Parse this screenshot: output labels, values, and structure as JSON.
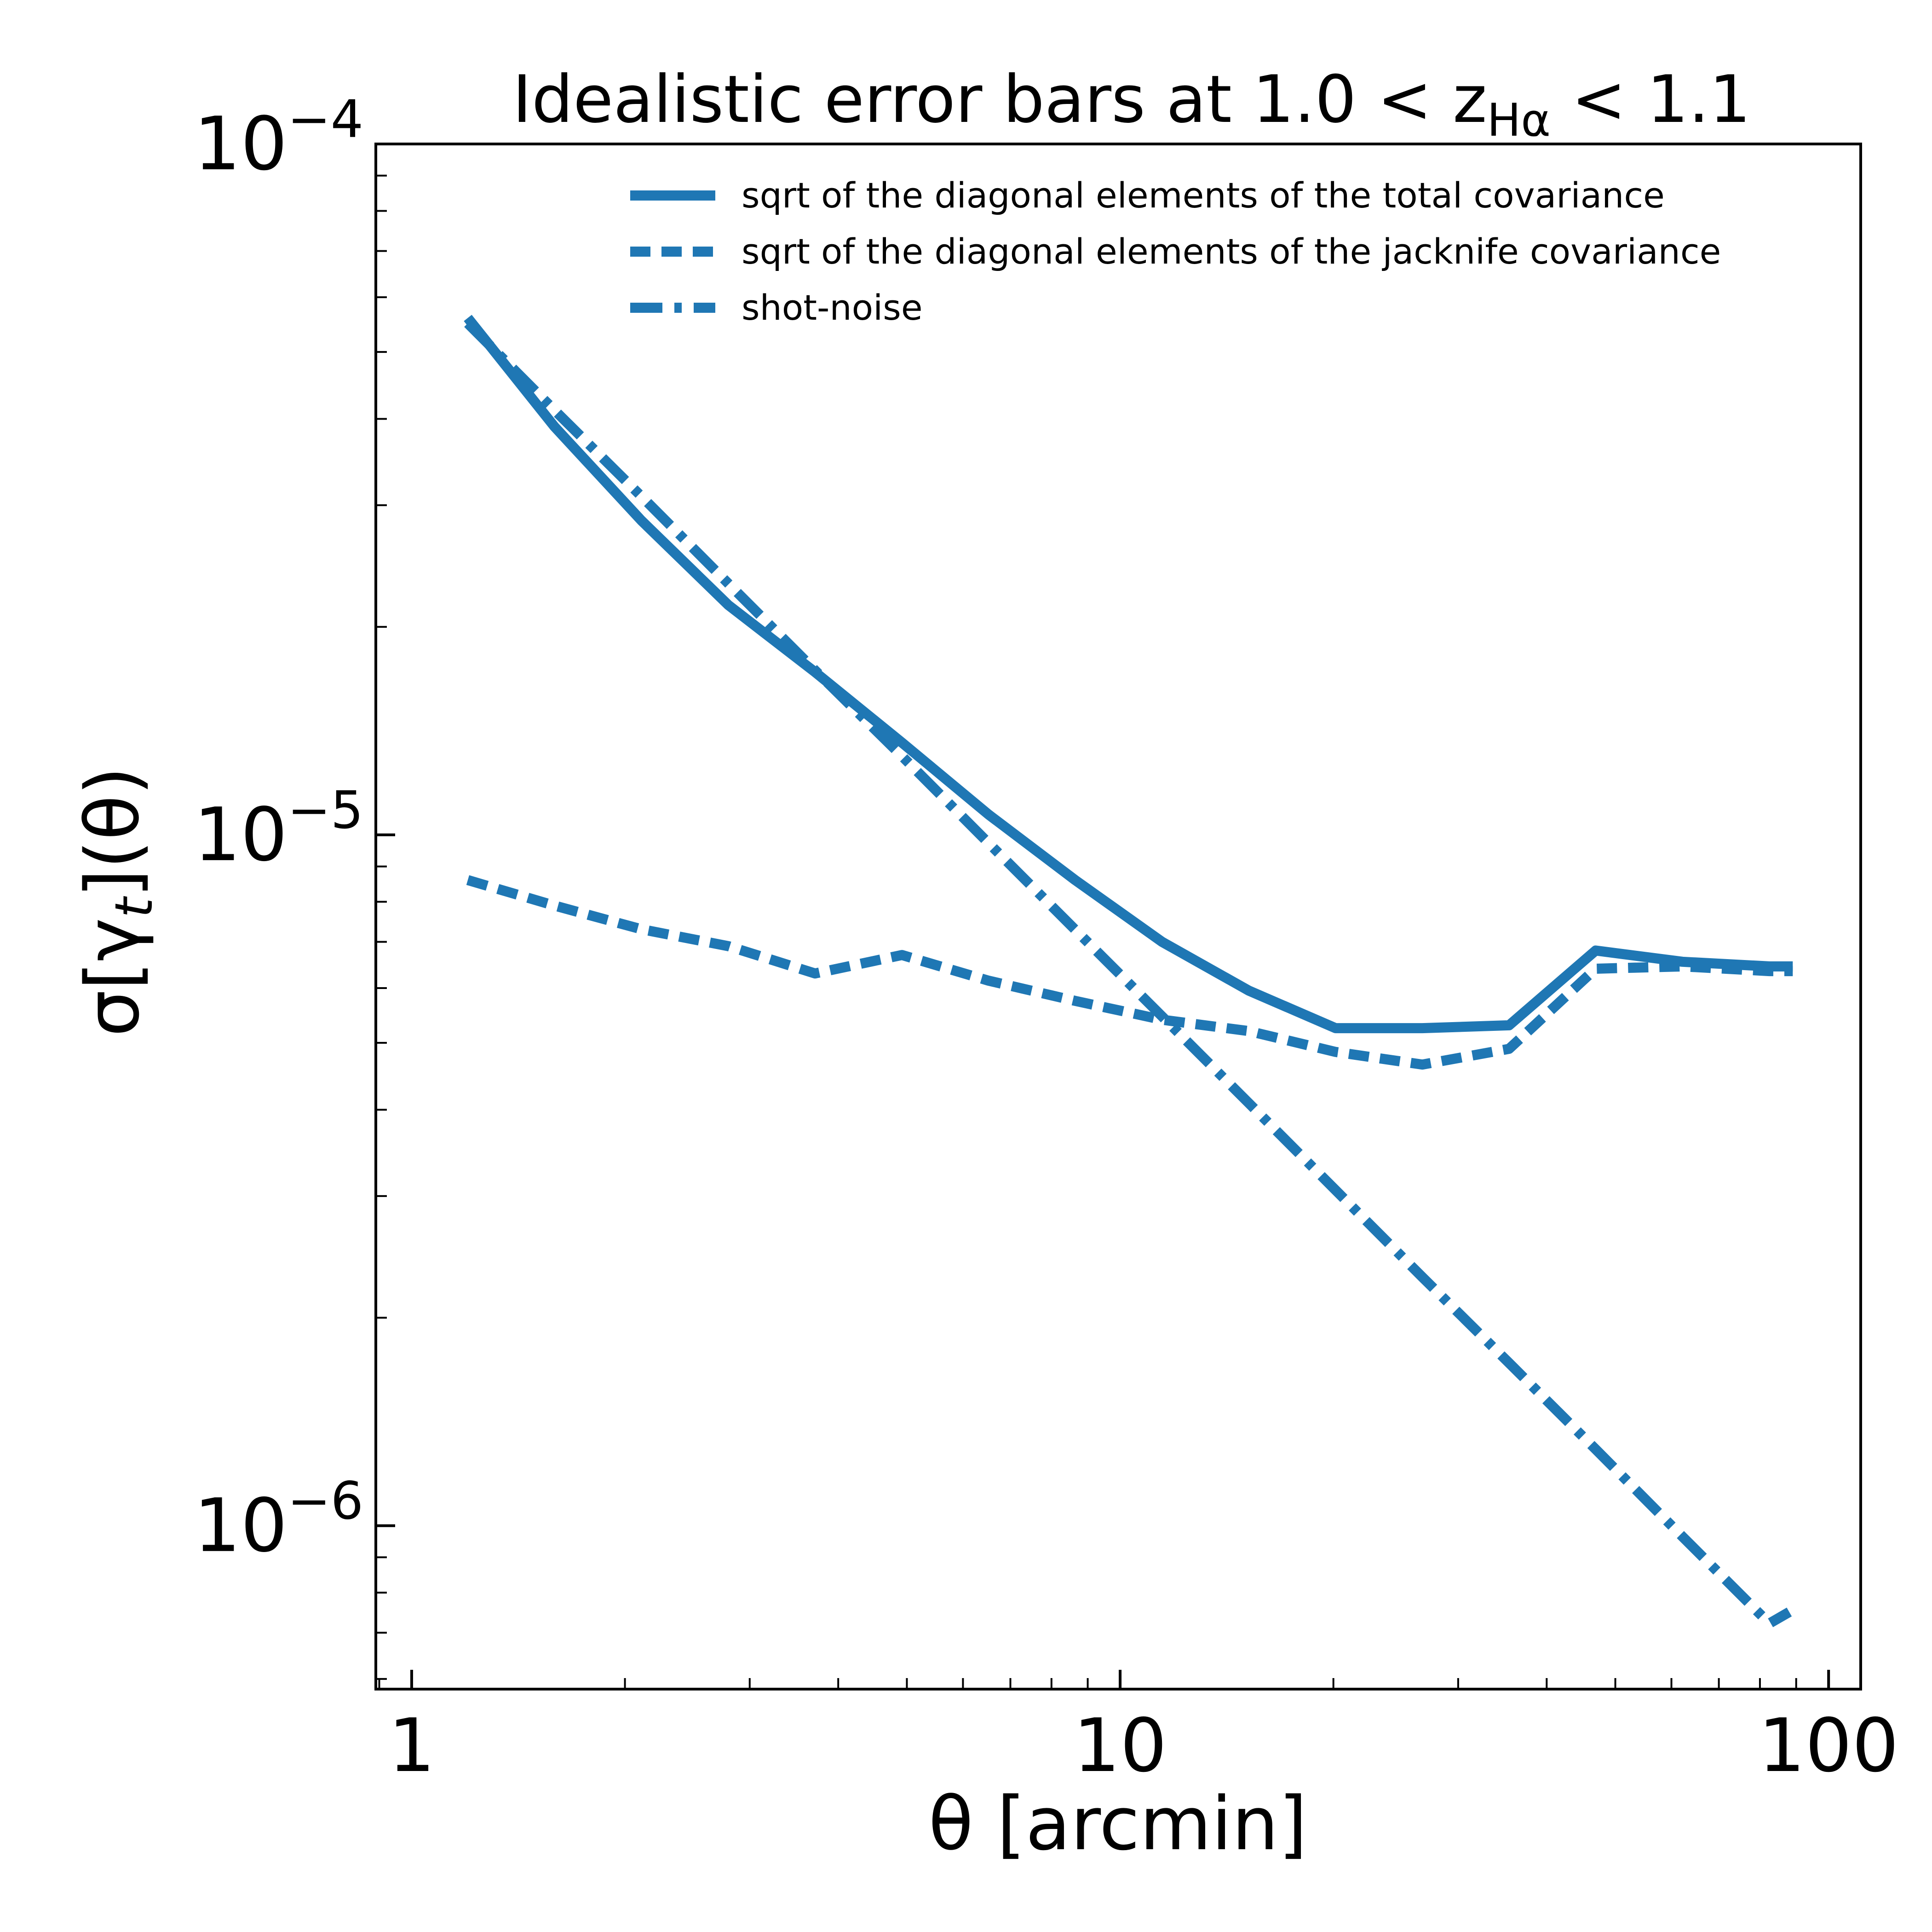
{
  "chart_data": {
    "type": "line",
    "title": "Idealistic error bars at 1.0 < z",
    "title_sub": "Hα",
    "title_tail": " < 1.1",
    "xlabel": "θ [arcmin]",
    "ylabel": "σ[γ",
    "ylabel_sub": "t",
    "ylabel_tail": "](θ)",
    "xscale": "log",
    "yscale": "log",
    "xlim": [
      0.89,
      111
    ],
    "ylim": [
      5.8e-07,
      0.0001
    ],
    "xticks": [
      {
        "value": 1,
        "label": "1"
      },
      {
        "value": 10,
        "label": "10"
      },
      {
        "value": 100,
        "label": "100"
      }
    ],
    "yticks": [
      {
        "value": 0.0001,
        "base": "10",
        "exp": "−4"
      },
      {
        "value": 1e-05,
        "base": "10",
        "exp": "−5"
      },
      {
        "value": 1e-06,
        "base": "10",
        "exp": "−6"
      }
    ],
    "grid": false,
    "legend_position": "top-right",
    "color": "#1f77b4",
    "series": [
      {
        "name": "sqrt of the diagonal elements of the total covariance",
        "style": "solid",
        "x": [
          1.2,
          1.59,
          2.11,
          2.8,
          3.71,
          4.92,
          6.52,
          8.64,
          11.46,
          15.19,
          20.14,
          26.7,
          35.4,
          46.9,
          62.2,
          82.5,
          89
        ],
        "y": [
          5.6e-05,
          3.9e-05,
          2.85e-05,
          2.15e-05,
          1.72e-05,
          1.36e-05,
          1.07e-05,
          8.6e-06,
          7e-06,
          5.95e-06,
          5.25e-06,
          5.25e-06,
          5.3e-06,
          6.8e-06,
          6.55e-06,
          6.45e-06,
          6.45e-06
        ]
      },
      {
        "name": "sqrt of the diagonal elements of the jacknife covariance",
        "style": "dashed",
        "x": [
          1.2,
          1.59,
          2.11,
          2.8,
          3.71,
          4.92,
          6.52,
          8.64,
          11.46,
          15.19,
          20.14,
          26.7,
          35.4,
          46.9,
          62.2,
          82.5,
          89
        ],
        "y": [
          8.6e-06,
          7.9e-06,
          7.3e-06,
          6.9e-06,
          6.3e-06,
          6.7e-06,
          6.15e-06,
          5.75e-06,
          5.4e-06,
          5.2e-06,
          4.85e-06,
          4.65e-06,
          4.9e-06,
          6.4e-06,
          6.45e-06,
          6.35e-06,
          6.35e-06
        ]
      },
      {
        "name": "shot-noise",
        "style": "dashdot",
        "x": [
          1.2,
          1.59,
          2.11,
          2.8,
          3.71,
          4.92,
          6.52,
          8.64,
          11.46,
          15.19,
          20.14,
          26.7,
          35.4,
          46.9,
          62.2,
          82.5,
          88
        ],
        "y": [
          5.5e-05,
          4.12e-05,
          3.09e-05,
          2.31e-05,
          1.73e-05,
          1.3e-05,
          9.73e-06,
          7.29e-06,
          5.46e-06,
          4.09e-06,
          3.06e-06,
          2.29e-06,
          1.72e-06,
          1.29e-06,
          9.64e-07,
          7.22e-07,
          7.5e-07
        ]
      }
    ]
  }
}
